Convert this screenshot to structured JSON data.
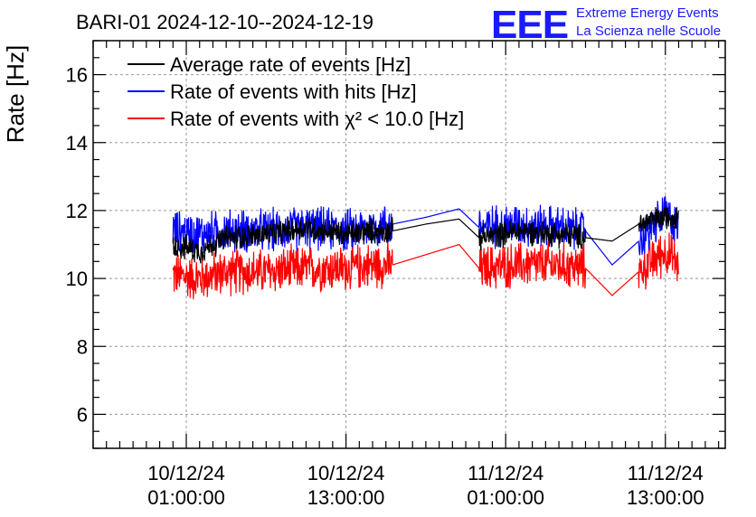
{
  "header": {
    "title": "BARI-01 2024-12-10--2024-12-19",
    "logo": "EEE",
    "logo_line1": "Extreme Energy Events",
    "logo_line2": "La Scienza nelle Scuole",
    "logo_color": "#1a1aff"
  },
  "chart_data": {
    "type": "line",
    "title": "BARI-01 2024-12-10--2024-12-19",
    "xlabel": "",
    "ylabel": "Rate [Hz]",
    "ylim": [
      5,
      17
    ],
    "xlim_hours": [
      -7.0,
      40.5
    ],
    "x_unit": "hours since 10/12/24 01:00:00",
    "yticks": [
      6,
      8,
      10,
      12,
      14,
      16
    ],
    "xticks": [
      {
        "hours": 0,
        "date": "10/12/24",
        "time": "01:00:00"
      },
      {
        "hours": 12,
        "date": "10/12/24",
        "time": "13:00:00"
      },
      {
        "hours": 24,
        "date": "11/12/24",
        "time": "01:00:00"
      },
      {
        "hours": 36,
        "date": "11/12/24",
        "time": "13:00:00"
      }
    ],
    "grid": true,
    "legend_position": "top-left",
    "series": [
      {
        "name": "Average rate of events [Hz]",
        "color": "#000000",
        "segments": [
          {
            "x": [
              -1.0,
              1.0,
              3.0,
              6.0,
              9.0,
              12.0,
              14.0,
              15.5,
              18.0,
              20.5,
              22.0,
              25.0,
              28.0,
              30.0,
              32.0,
              34.0,
              36.0,
              37.0
            ],
            "y": [
              11.0,
              10.8,
              11.2,
              11.3,
              11.5,
              11.3,
              11.4,
              11.4,
              11.6,
              11.75,
              11.2,
              11.4,
              11.3,
              11.2,
              11.1,
              11.6,
              11.8,
              11.9
            ]
          }
        ],
        "noise": 0.45
      },
      {
        "name": "Rate of events with hits [Hz]",
        "color": "#0000ff",
        "segments": [
          {
            "x": [
              -1.0,
              1.0,
              3.0,
              6.0,
              9.0,
              12.0,
              14.0,
              15.5,
              18.0,
              20.5,
              22.0,
              25.0,
              28.0,
              30.0,
              32.0,
              34.0,
              36.0,
              37.0
            ],
            "y": [
              11.4,
              11.3,
              11.4,
              11.4,
              11.5,
              11.4,
              11.5,
              11.6,
              11.8,
              12.05,
              11.5,
              11.6,
              11.5,
              11.4,
              10.4,
              11.1,
              11.9,
              11.5
            ]
          }
        ],
        "noise": 0.75
      },
      {
        "name": "Rate of events with χ² < 10.0 [Hz]",
        "color": "#ff0000",
        "segments": [
          {
            "x": [
              -1.0,
              1.0,
              3.0,
              6.0,
              9.0,
              12.0,
              14.0,
              15.5,
              18.0,
              20.5,
              22.0,
              25.0,
              28.0,
              30.0,
              32.0,
              34.0,
              36.0,
              37.0
            ],
            "y": [
              10.1,
              10.0,
              10.2,
              10.2,
              10.3,
              10.3,
              10.4,
              10.4,
              10.7,
              11.0,
              10.3,
              10.4,
              10.4,
              10.3,
              9.5,
              10.2,
              10.8,
              10.4
            ]
          }
        ],
        "noise": 0.8
      }
    ],
    "data_windows_hours": [
      [
        -1.0,
        15.5
      ],
      [
        22.0,
        30.0
      ],
      [
        34.0,
        37.0
      ]
    ]
  }
}
